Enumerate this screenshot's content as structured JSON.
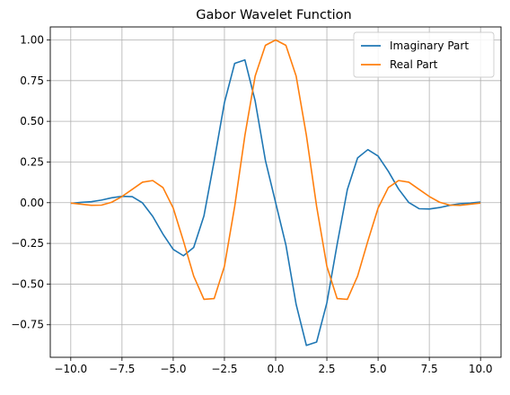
{
  "chart_data": {
    "type": "line",
    "title": "Gabor Wavelet Function",
    "xlabel": "",
    "ylabel": "",
    "xlim": [
      -11.0,
      11.0
    ],
    "ylim": [
      -0.95,
      1.08
    ],
    "grid": true,
    "legend_position": "top-right",
    "x_ticks": [
      -10.0,
      -7.5,
      -5.0,
      -2.5,
      0.0,
      2.5,
      5.0,
      7.5,
      10.0
    ],
    "x_tick_labels": [
      "−10.0",
      "−7.5",
      "−5.0",
      "−2.5",
      "0.0",
      "2.5",
      "5.0",
      "7.5",
      "10.0"
    ],
    "y_ticks": [
      -0.75,
      -0.5,
      -0.25,
      0.0,
      0.25,
      0.5,
      0.75,
      1.0
    ],
    "y_tick_labels": [
      "−0.75",
      "−0.50",
      "−0.25",
      "0.00",
      "0.25",
      "0.50",
      "0.75",
      "1.00"
    ],
    "x": [
      -10.0,
      -9.5,
      -9.0,
      -8.5,
      -8.0,
      -7.5,
      -7.0,
      -6.5,
      -6.0,
      -5.5,
      -5.0,
      -4.5,
      -4.0,
      -3.5,
      -3.0,
      -2.5,
      -2.0,
      -1.5,
      -1.0,
      -0.5,
      0.0,
      0.5,
      1.0,
      1.5,
      2.0,
      2.5,
      3.0,
      3.5,
      4.0,
      4.5,
      5.0,
      5.5,
      6.0,
      6.5,
      7.0,
      7.5,
      8.0,
      8.5,
      9.0,
      9.5,
      10.0
    ],
    "series": [
      {
        "name": "Imaginary Part",
        "color": "#1f77b4",
        "values": [
          -0.004,
          0.002,
          0.006,
          0.016,
          0.03,
          0.039,
          0.037,
          -0.001,
          -0.084,
          -0.193,
          -0.287,
          -0.326,
          -0.275,
          -0.081,
          0.257,
          0.615,
          0.856,
          0.877,
          0.625,
          0.26,
          0.0,
          -0.26,
          -0.625,
          -0.877,
          -0.856,
          -0.615,
          -0.257,
          0.081,
          0.275,
          0.326,
          0.287,
          0.193,
          0.084,
          0.001,
          -0.037,
          -0.039,
          -0.03,
          -0.016,
          -0.006,
          -0.002,
          0.004
        ]
      },
      {
        "name": "Real Part",
        "color": "#ff7f0e",
        "values": [
          -0.002,
          -0.009,
          -0.016,
          -0.015,
          0.003,
          0.038,
          0.082,
          0.126,
          0.136,
          0.093,
          -0.033,
          -0.236,
          -0.451,
          -0.594,
          -0.589,
          -0.391,
          -0.023,
          0.414,
          0.778,
          0.967,
          1.0,
          0.967,
          0.778,
          0.414,
          -0.023,
          -0.391,
          -0.589,
          -0.594,
          -0.451,
          -0.236,
          -0.033,
          0.093,
          0.136,
          0.126,
          0.082,
          0.038,
          0.003,
          -0.015,
          -0.016,
          -0.009,
          -0.002
        ]
      }
    ]
  }
}
